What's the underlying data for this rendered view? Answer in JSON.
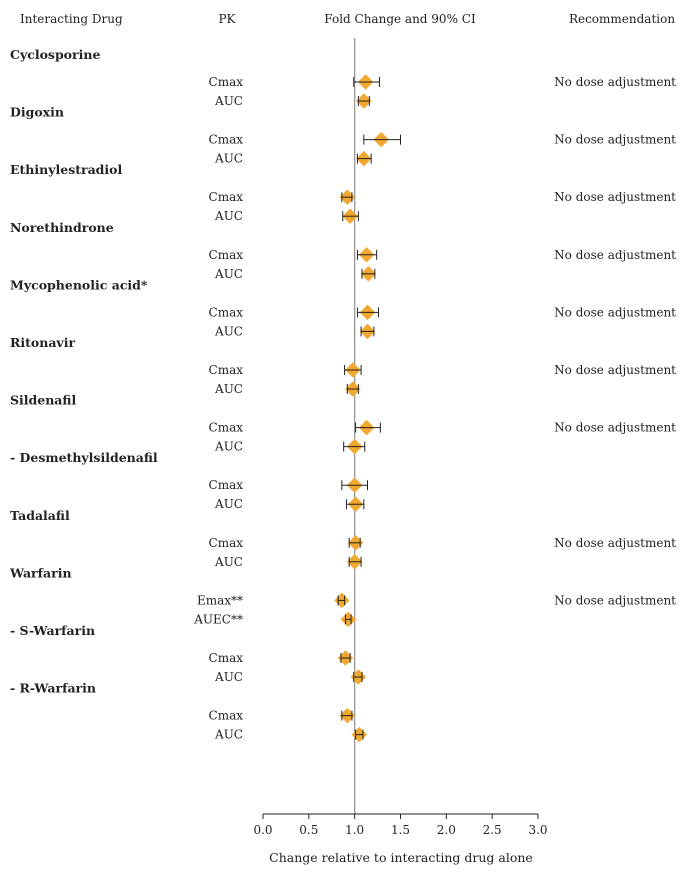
{
  "headers": {
    "drug": "Interacting Drug",
    "pk": "PK",
    "fold": "Fold Change and 90% CI",
    "rec": "Recommendation"
  },
  "chart_data": {
    "type": "scatter",
    "xlabel": "Change relative to interacting drug alone",
    "xlim": [
      0.0,
      3.0
    ],
    "xticks": [
      "0.0",
      "0.5",
      "1.0",
      "1.5",
      "2.0",
      "2.5",
      "3.0"
    ],
    "reference_line": 1.0,
    "marker_color": "#F0A830",
    "groups": [
      {
        "drug": "Cyclosporine",
        "recommendation": "No dose adjustment",
        "rows": [
          {
            "pk": "Cmax",
            "value": 1.12,
            "ci": [
              0.99,
              1.27
            ]
          },
          {
            "pk": "AUC",
            "value": 1.1,
            "ci": [
              1.04,
              1.16
            ]
          }
        ]
      },
      {
        "drug": "Digoxin",
        "recommendation": "No dose adjustment",
        "rows": [
          {
            "pk": "Cmax",
            "value": 1.29,
            "ci": [
              1.1,
              1.5
            ]
          },
          {
            "pk": "AUC",
            "value": 1.1,
            "ci": [
              1.03,
              1.18
            ]
          }
        ]
      },
      {
        "drug": "Ethinylestradiol",
        "recommendation": "No dose adjustment",
        "rows": [
          {
            "pk": "Cmax",
            "value": 0.92,
            "ci": [
              0.86,
              0.97
            ]
          },
          {
            "pk": "AUC",
            "value": 0.95,
            "ci": [
              0.87,
              1.04
            ]
          }
        ]
      },
      {
        "drug": "Norethindrone",
        "recommendation": "No dose adjustment",
        "rows": [
          {
            "pk": "Cmax",
            "value": 1.13,
            "ci": [
              1.03,
              1.24
            ]
          },
          {
            "pk": "AUC",
            "value": 1.15,
            "ci": [
              1.08,
              1.22
            ]
          }
        ]
      },
      {
        "drug": "Mycophenolic acid*",
        "recommendation": "No dose adjustment",
        "rows": [
          {
            "pk": "Cmax",
            "value": 1.14,
            "ci": [
              1.03,
              1.26
            ]
          },
          {
            "pk": "AUC",
            "value": 1.14,
            "ci": [
              1.07,
              1.21
            ]
          }
        ]
      },
      {
        "drug": "Ritonavir",
        "recommendation": "No dose adjustment",
        "rows": [
          {
            "pk": "Cmax",
            "value": 0.98,
            "ci": [
              0.89,
              1.07
            ]
          },
          {
            "pk": "AUC",
            "value": 0.98,
            "ci": [
              0.92,
              1.04
            ]
          }
        ]
      },
      {
        "drug": "Sildenafil",
        "recommendation": "No dose adjustment",
        "rows": [
          {
            "pk": "Cmax",
            "value": 1.13,
            "ci": [
              1.01,
              1.28
            ]
          },
          {
            "pk": "AUC",
            "value": 1.0,
            "ci": [
              0.88,
              1.11
            ]
          }
        ]
      },
      {
        "drug": "-   Desmethylsildenafil",
        "recommendation": "",
        "rows": [
          {
            "pk": "Cmax",
            "value": 1.0,
            "ci": [
              0.86,
              1.14
            ]
          },
          {
            "pk": "AUC",
            "value": 1.01,
            "ci": [
              0.91,
              1.1
            ]
          }
        ]
      },
      {
        "drug": "Tadalafil",
        "recommendation": "No dose adjustment",
        "rows": [
          {
            "pk": "Cmax",
            "value": 1.01,
            "ci": [
              0.94,
              1.06
            ]
          },
          {
            "pk": "AUC",
            "value": 1.0,
            "ci": [
              0.94,
              1.07
            ]
          }
        ]
      },
      {
        "drug": "Warfarin",
        "recommendation": "No dose adjustment",
        "rows": [
          {
            "pk": "Emax**",
            "value": 0.86,
            "ci": [
              0.82,
              0.89
            ]
          },
          {
            "pk": "AUEC**",
            "value": 0.93,
            "ci": [
              0.9,
              0.96
            ]
          }
        ]
      },
      {
        "drug": "-   S-Warfarin",
        "recommendation": "",
        "rows": [
          {
            "pk": "Cmax",
            "value": 0.9,
            "ci": [
              0.85,
              0.95
            ]
          },
          {
            "pk": "AUC",
            "value": 1.04,
            "ci": [
              0.99,
              1.08
            ]
          }
        ]
      },
      {
        "drug": "-   R-Warfarin",
        "recommendation": "",
        "rows": [
          {
            "pk": "Cmax",
            "value": 0.92,
            "ci": [
              0.86,
              0.97
            ]
          },
          {
            "pk": "AUC",
            "value": 1.05,
            "ci": [
              1.01,
              1.09
            ]
          }
        ]
      }
    ]
  }
}
